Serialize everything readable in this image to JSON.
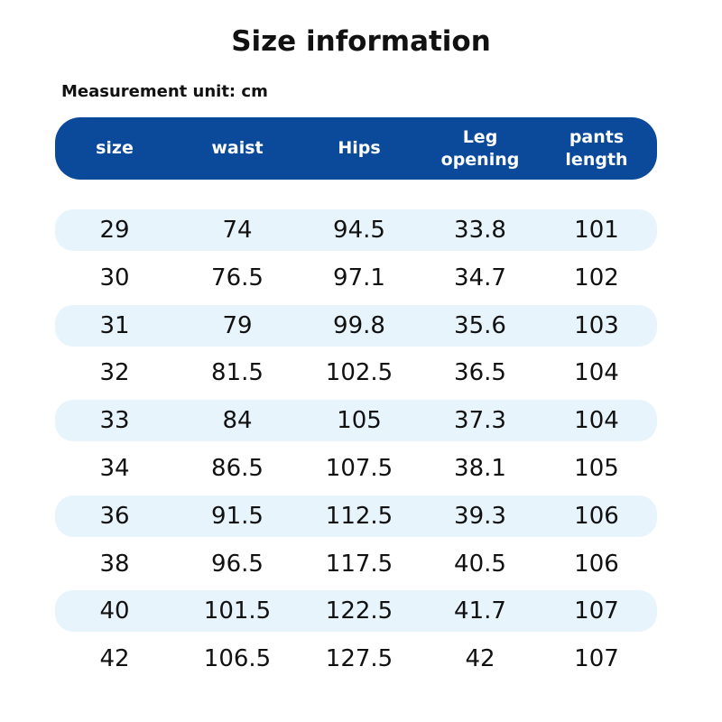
{
  "title": "Size information",
  "unit_label": "Measurement unit: cm",
  "colors": {
    "header_bg": "#0b4a9b",
    "row_stripe": "#e8f4fc"
  },
  "table": {
    "columns": [
      "size",
      "waist",
      "Hips",
      "Leg\nopening",
      "pants\nlength"
    ],
    "rows": [
      [
        "29",
        "74",
        "94.5",
        "33.8",
        "101"
      ],
      [
        "30",
        "76.5",
        "97.1",
        "34.7",
        "102"
      ],
      [
        "31",
        "79",
        "99.8",
        "35.6",
        "103"
      ],
      [
        "32",
        "81.5",
        "102.5",
        "36.5",
        "104"
      ],
      [
        "33",
        "84",
        "105",
        "37.3",
        "104"
      ],
      [
        "34",
        "86.5",
        "107.5",
        "38.1",
        "105"
      ],
      [
        "36",
        "91.5",
        "112.5",
        "39.3",
        "106"
      ],
      [
        "38",
        "96.5",
        "117.5",
        "40.5",
        "106"
      ],
      [
        "40",
        "101.5",
        "122.5",
        "41.7",
        "107"
      ],
      [
        "42",
        "106.5",
        "127.5",
        "42",
        "107"
      ]
    ]
  }
}
